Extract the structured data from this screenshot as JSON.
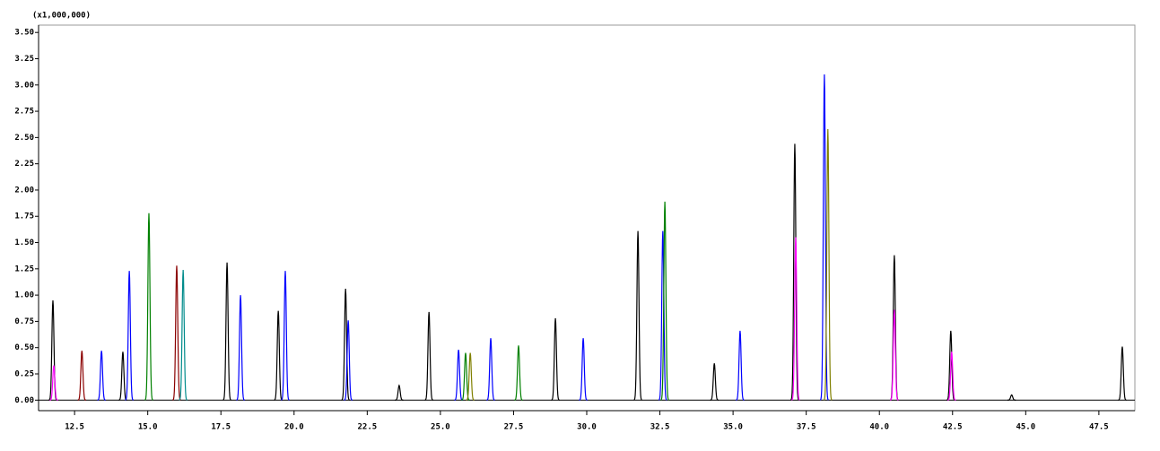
{
  "chart_data": {
    "type": "chromatogram",
    "multiplier": "(x1,000,000)",
    "xlim": [
      11.27,
      48.73
    ],
    "ylim": [
      -0.1,
      3.57
    ],
    "xticks": [
      {
        "value": 12.5,
        "label": "12.5"
      },
      {
        "value": 15,
        "label": "15.0"
      },
      {
        "value": 17.5,
        "label": "17.5"
      },
      {
        "value": 20,
        "label": "20.0"
      },
      {
        "value": 22.5,
        "label": "22.5"
      },
      {
        "value": 25,
        "label": "25.0"
      },
      {
        "value": 27.5,
        "label": "27.5"
      },
      {
        "value": 30,
        "label": "30.0"
      },
      {
        "value": 32.5,
        "label": "32.5"
      },
      {
        "value": 35,
        "label": "35.0"
      },
      {
        "value": 37.5,
        "label": "37.5"
      },
      {
        "value": 40,
        "label": "40.0"
      },
      {
        "value": 42.5,
        "label": "42.5"
      },
      {
        "value": 45,
        "label": "45.0"
      },
      {
        "value": 47.5,
        "label": "47.5"
      }
    ],
    "yticks": [
      {
        "value": 0,
        "label": "0.00"
      },
      {
        "value": 0.25,
        "label": "0.25"
      },
      {
        "value": 0.5,
        "label": "0.50"
      },
      {
        "value": 0.75,
        "label": "0.75"
      },
      {
        "value": 1,
        "label": "1.00"
      },
      {
        "value": 1.25,
        "label": "1.25"
      },
      {
        "value": 1.5,
        "label": "1.50"
      },
      {
        "value": 1.75,
        "label": "1.75"
      },
      {
        "value": 2,
        "label": "2.00"
      },
      {
        "value": 2.25,
        "label": "2.25"
      },
      {
        "value": 2.5,
        "label": "2.50"
      },
      {
        "value": 2.75,
        "label": "2.75"
      },
      {
        "value": 3,
        "label": "3.00"
      },
      {
        "value": 3.25,
        "label": "3.25"
      },
      {
        "value": 3.5,
        "label": "3.50"
      }
    ],
    "series": [
      {
        "color": "#000000",
        "x": [
          11.76,
          14.15,
          17.71,
          19.46,
          21.76,
          23.59,
          24.61,
          28.93,
          31.75,
          34.36,
          37.11,
          40.51,
          42.44,
          44.52,
          48.3
        ],
        "values": [
          0.95,
          0.46,
          1.31,
          0.85,
          1.06,
          0.14,
          0.84,
          0.78,
          1.61,
          0.35,
          2.44,
          1.38,
          0.66,
          0.05,
          0.51
        ]
      },
      {
        "color": "#0000ff",
        "x": [
          13.42,
          14.37,
          18.17,
          19.7,
          21.85,
          25.62,
          26.72,
          29.88,
          32.6,
          35.24,
          38.12
        ],
        "values": [
          0.47,
          1.23,
          1.0,
          1.23,
          0.76,
          0.48,
          0.59,
          0.59,
          1.61,
          0.66,
          3.1
        ]
      },
      {
        "color": "#008000",
        "x": [
          15.04,
          25.86,
          27.67,
          32.67
        ],
        "values": [
          1.78,
          0.45,
          0.52,
          1.89
        ]
      },
      {
        "color": "#8b0000",
        "x": [
          12.75,
          15.99
        ],
        "values": [
          0.47,
          1.28
        ]
      },
      {
        "color": "#008b8b",
        "x": [
          16.21
        ],
        "values": [
          1.24
        ]
      },
      {
        "color": "#808000",
        "x": [
          26.02,
          38.24
        ],
        "values": [
          0.45,
          2.58
        ]
      },
      {
        "color": "#ff00ff",
        "x": [
          11.79,
          37.14,
          40.51,
          42.47
        ],
        "values": [
          0.33,
          1.55,
          0.86,
          0.46
        ]
      }
    ]
  }
}
